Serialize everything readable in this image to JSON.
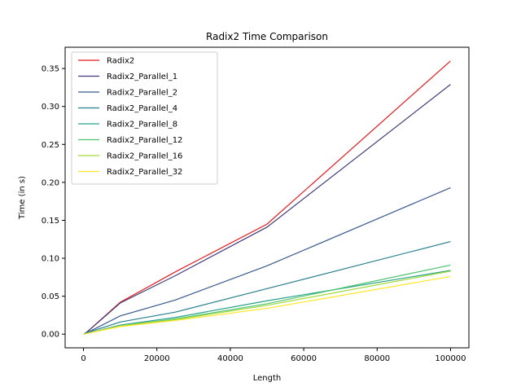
{
  "chart_data": {
    "type": "line",
    "title": "Radix2 Time Comparison",
    "xlabel": "Length",
    "ylabel": "Time (in s)",
    "xlim": [
      -5000,
      105000
    ],
    "ylim": [
      -0.018,
      0.378
    ],
    "xticks": [
      0,
      20000,
      40000,
      60000,
      80000,
      100000
    ],
    "xtick_labels": [
      "0",
      "20000",
      "40000",
      "60000",
      "80000",
      "100000"
    ],
    "yticks": [
      0.0,
      0.05,
      0.1,
      0.15,
      0.2,
      0.25,
      0.3,
      0.35
    ],
    "ytick_labels": [
      "0.00",
      "0.05",
      "0.10",
      "0.15",
      "0.20",
      "0.25",
      "0.30",
      "0.35"
    ],
    "grid": false,
    "legend_position": "top-left",
    "x": [
      100,
      1000,
      10000,
      25000,
      50000,
      100000
    ],
    "series": [
      {
        "name": "Radix2",
        "color": "#e41a1c",
        "values": [
          0.0,
          0.003,
          0.042,
          0.082,
          0.145,
          0.36
        ]
      },
      {
        "name": "Radix2_Parallel_1",
        "color": "#413d7b",
        "values": [
          0.0,
          0.003,
          0.041,
          0.077,
          0.141,
          0.329
        ]
      },
      {
        "name": "Radix2_Parallel_2",
        "color": "#37598c",
        "values": [
          0.0,
          0.002,
          0.024,
          0.045,
          0.09,
          0.193
        ]
      },
      {
        "name": "Radix2_Parallel_4",
        "color": "#277f8e",
        "values": [
          0.0,
          0.002,
          0.016,
          0.029,
          0.06,
          0.122
        ]
      },
      {
        "name": "Radix2_Parallel_8",
        "color": "#26a088",
        "values": [
          0.0,
          0.001,
          0.012,
          0.022,
          0.044,
          0.084
        ]
      },
      {
        "name": "Radix2_Parallel_12",
        "color": "#4cc26c",
        "values": [
          0.0,
          0.001,
          0.011,
          0.02,
          0.04,
          0.091
        ]
      },
      {
        "name": "Radix2_Parallel_16",
        "color": "#a0da39",
        "values": [
          0.0,
          0.001,
          0.011,
          0.019,
          0.038,
          0.083
        ]
      },
      {
        "name": "Radix2_Parallel_32",
        "color": "#fde725",
        "values": [
          0.0,
          0.001,
          0.01,
          0.018,
          0.034,
          0.076
        ]
      }
    ]
  }
}
